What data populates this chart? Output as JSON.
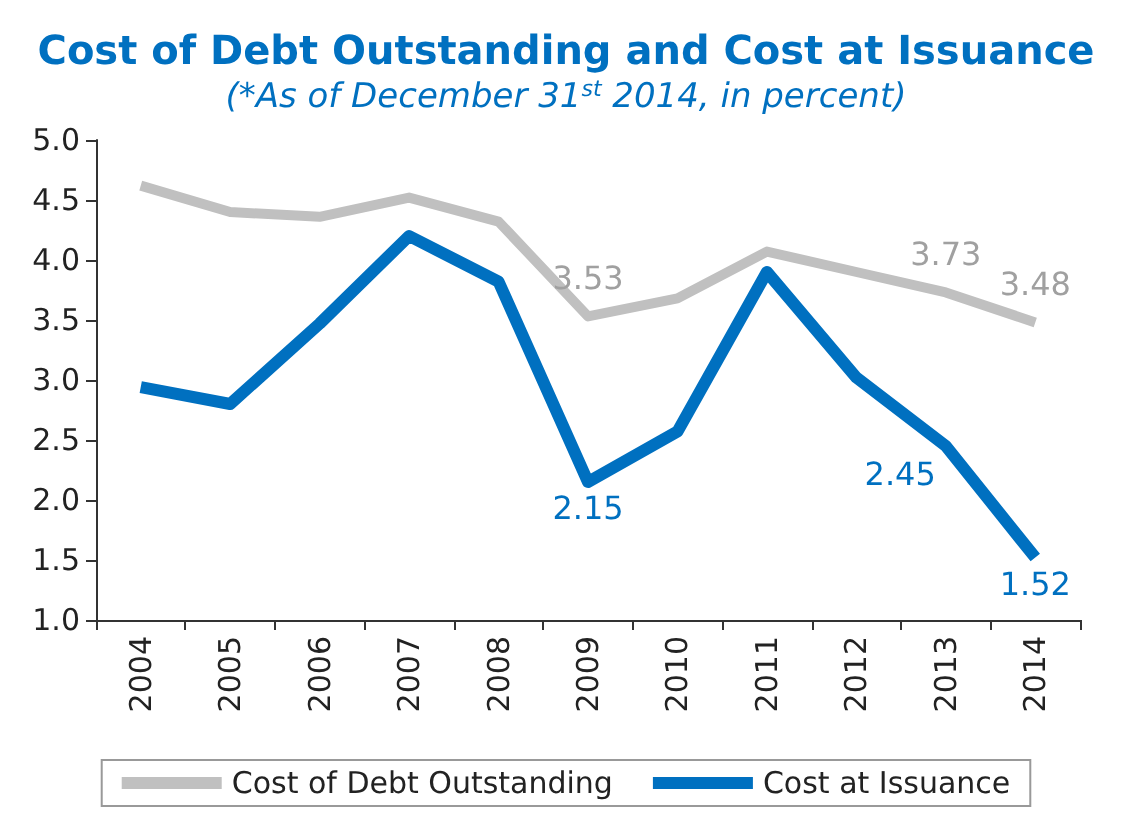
{
  "chart_data": {
    "type": "line",
    "title": "Cost of Debt Outstanding and Cost at Issuance",
    "subtitle": "(*As of December 31$^{st}$ 2014, in percent)",
    "categories": [
      "2004",
      "2005",
      "2006",
      "2007",
      "2008",
      "2009",
      "2010",
      "2011",
      "2012",
      "2013",
      "2014"
    ],
    "series": [
      {
        "name": "Cost of Debt Outstanding",
        "color": "#c0c0c0",
        "values": [
          4.62,
          4.4,
          4.36,
          4.52,
          4.32,
          3.53,
          3.68,
          4.07,
          3.9,
          3.73,
          3.48
        ],
        "value_labels": [
          null,
          null,
          null,
          null,
          null,
          "3.53",
          null,
          null,
          null,
          "3.73",
          "3.48"
        ]
      },
      {
        "name": "Cost at Issuance",
        "color": "#0070c0",
        "values": [
          2.94,
          2.8,
          3.47,
          4.2,
          3.82,
          2.15,
          2.57,
          3.9,
          3.02,
          2.45,
          1.52
        ],
        "value_labels": [
          null,
          null,
          null,
          null,
          null,
          "2.15",
          null,
          null,
          null,
          "2.45",
          "1.52"
        ]
      }
    ],
    "ylim": [
      1.0,
      5.0
    ],
    "yticks": [
      {
        "value": 1,
        "label": "1.0"
      },
      1.5,
      {
        "value": 2,
        "label": "2.0"
      },
      2.5,
      {
        "value": 3,
        "label": "3.0"
      },
      3.5,
      {
        "value": 4,
        "label": "4.0"
      },
      4.5,
      {
        "value": 5,
        "label": "5.0"
      }
    ],
    "grid": false,
    "legend": "bottom",
    "marker": "none",
    "line_style": "solid"
  }
}
